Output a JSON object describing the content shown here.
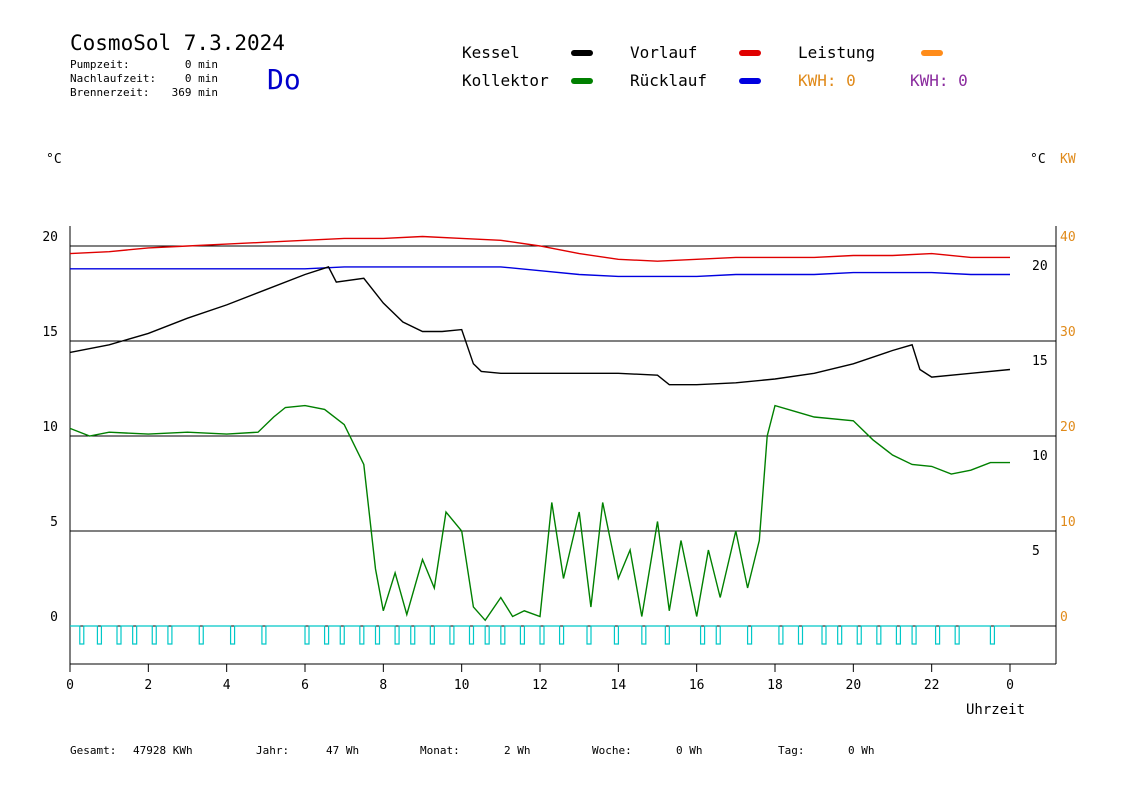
{
  "header": {
    "title": "CosmoSol 7.3.2024",
    "day": "Do",
    "info": [
      {
        "label": "Pumpzeit:",
        "value": "0 min"
      },
      {
        "label": "Nachlaufzeit:",
        "value": "0 min"
      },
      {
        "label": "Brennerzeit:",
        "value": "369 min"
      }
    ]
  },
  "legend": {
    "items": [
      {
        "label": "Kessel",
        "color": "#000000"
      },
      {
        "label": "Vorlauf",
        "color": "#e00000"
      },
      {
        "label": "Leistung",
        "color": "#ff8c1a"
      },
      {
        "label": "Kollektor",
        "color": "#008000"
      },
      {
        "label": "Rücklauf",
        "color": "#0000e0"
      }
    ],
    "kwh_orange": "KWH: 0",
    "kwh_purple": "KWH: 0",
    "kwh_orange_color": "#e08a1a",
    "kwh_purple_color": "#8a2b9e"
  },
  "axes": {
    "left_unit": "°C",
    "right_unit": "°C",
    "right_unit2": "KW",
    "xlabel": "Uhrzeit"
  },
  "footer": [
    {
      "label": "Gesamt:",
      "value": "47928 KWh"
    },
    {
      "label": "Jahr:",
      "value": "47 Wh"
    },
    {
      "label": "Monat:",
      "value": "2 Wh"
    },
    {
      "label": "Woche:",
      "value": "0 Wh"
    },
    {
      "label": "Tag:",
      "value": "0 Wh"
    }
  ],
  "chart_data": {
    "type": "line",
    "x_range": [
      0,
      24
    ],
    "x_tick_labels": [
      "0",
      "2",
      "4",
      "6",
      "8",
      "10",
      "12",
      "14",
      "16",
      "18",
      "20",
      "22",
      "0"
    ],
    "left_axis": {
      "unit": "°C",
      "range": [
        -1.8,
        22
      ],
      "ticks": [
        0,
        5,
        10,
        15,
        20
      ]
    },
    "inner_axis": {
      "unit": "°C",
      "ticks": [
        5,
        10,
        15,
        20
      ]
    },
    "right_axis": {
      "unit": "KW",
      "ticks": [
        0,
        10,
        20,
        30,
        40
      ]
    },
    "grid": true,
    "series": [
      {
        "name": "Vorlauf",
        "color": "#e00000",
        "x": [
          0,
          1,
          2,
          3,
          4,
          5,
          6,
          7,
          8,
          9,
          10,
          11,
          12,
          13,
          14,
          15,
          16,
          17,
          18,
          19,
          20,
          21,
          22,
          23,
          24
        ],
        "y": [
          19.6,
          19.7,
          19.9,
          20.0,
          20.1,
          20.2,
          20.3,
          20.4,
          20.4,
          20.5,
          20.4,
          20.3,
          20.0,
          19.6,
          19.3,
          19.2,
          19.3,
          19.4,
          19.4,
          19.4,
          19.5,
          19.5,
          19.6,
          19.4,
          19.4
        ]
      },
      {
        "name": "Rücklauf",
        "color": "#0000e0",
        "x": [
          0,
          1,
          2,
          3,
          4,
          5,
          6,
          7,
          8,
          9,
          10,
          11,
          12,
          13,
          14,
          15,
          16,
          17,
          18,
          19,
          20,
          21,
          22,
          23,
          24
        ],
        "y": [
          18.8,
          18.8,
          18.8,
          18.8,
          18.8,
          18.8,
          18.8,
          18.9,
          18.9,
          18.9,
          18.9,
          18.9,
          18.7,
          18.5,
          18.4,
          18.4,
          18.4,
          18.5,
          18.5,
          18.5,
          18.6,
          18.6,
          18.6,
          18.5,
          18.5
        ]
      },
      {
        "name": "Kessel",
        "color": "#000000",
        "x": [
          0,
          1,
          2,
          3,
          4,
          5,
          6,
          6.6,
          6.8,
          7.5,
          8,
          8.5,
          9,
          9.5,
          10,
          10.3,
          10.5,
          11,
          12,
          13,
          14,
          15,
          15.3,
          16,
          17,
          18,
          19,
          20,
          21,
          21.5,
          21.7,
          22,
          23,
          24
        ],
        "y": [
          14.4,
          14.8,
          15.4,
          16.2,
          16.9,
          17.7,
          18.5,
          18.9,
          18.1,
          18.3,
          17.0,
          16.0,
          15.5,
          15.5,
          15.6,
          13.8,
          13.4,
          13.3,
          13.3,
          13.3,
          13.3,
          13.2,
          12.7,
          12.7,
          12.8,
          13.0,
          13.3,
          13.8,
          14.5,
          14.8,
          13.5,
          13.1,
          13.3,
          13.5
        ]
      },
      {
        "name": "Kollektor",
        "color": "#008000",
        "x": [
          0,
          0.5,
          1,
          2,
          3,
          4,
          4.8,
          5.2,
          5.5,
          6,
          6.5,
          7,
          7.5,
          7.8,
          8,
          8.3,
          8.6,
          9,
          9.3,
          9.6,
          10,
          10.3,
          10.6,
          11,
          11.3,
          11.6,
          12,
          12.3,
          12.6,
          13,
          13.3,
          13.6,
          14,
          14.3,
          14.6,
          15,
          15.3,
          15.6,
          16,
          16.3,
          16.6,
          17,
          17.3,
          17.6,
          17.8,
          18,
          18.5,
          19,
          20,
          20.5,
          21,
          21.5,
          22,
          22.5,
          23,
          23.5,
          24
        ],
        "y": [
          10.4,
          10.0,
          10.2,
          10.1,
          10.2,
          10.1,
          10.2,
          11.0,
          11.5,
          11.6,
          11.4,
          10.6,
          8.5,
          3.0,
          0.8,
          2.8,
          0.6,
          3.5,
          2.0,
          6.0,
          5.0,
          1.0,
          0.3,
          1.5,
          0.5,
          0.8,
          0.5,
          6.5,
          2.5,
          6.0,
          1.0,
          6.5,
          2.5,
          4.0,
          0.5,
          5.5,
          0.8,
          4.5,
          0.5,
          4.0,
          1.5,
          5.0,
          2.0,
          4.5,
          10.0,
          11.6,
          11.3,
          11.0,
          10.8,
          9.8,
          9.0,
          8.5,
          8.4,
          8.0,
          8.2,
          8.6,
          8.6
        ]
      }
    ],
    "pump_state": {
      "name": "Pump",
      "color": "#00c8c8",
      "x_on": [
        0.25,
        0.7,
        1.2,
        1.6,
        2.1,
        2.5,
        3.3,
        4.1,
        4.9,
        6.0,
        6.5,
        6.9,
        7.4,
        7.8,
        8.3,
        8.7,
        9.2,
        9.7,
        10.2,
        10.6,
        11.0,
        11.5,
        12.0,
        12.5,
        13.2,
        13.9,
        14.6,
        15.2,
        16.1,
        16.5,
        17.3,
        18.1,
        18.6,
        19.2,
        19.6,
        20.1,
        20.6,
        21.1,
        21.5,
        22.1,
        22.6,
        23.5
      ]
    }
  }
}
